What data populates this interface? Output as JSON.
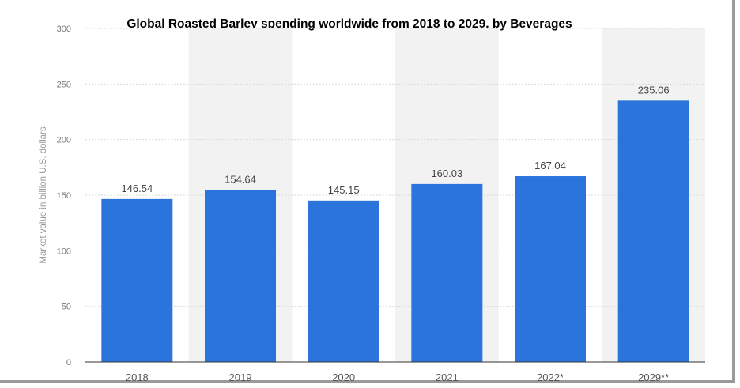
{
  "chart_data": {
    "type": "bar",
    "title": "Global Roasted Barley spending worldwide from 2018 to 2029, by Beverages",
    "xlabel": "",
    "ylabel": "Market value in billion U.S. dollars",
    "categories": [
      "2018",
      "2019",
      "2020",
      "2021",
      "2022*",
      "2029**"
    ],
    "values": [
      146.54,
      154.64,
      145.15,
      160.03,
      167.04,
      235.06
    ],
    "data_labels": [
      "146.54",
      "154.64",
      "145.15",
      "160.03",
      "167.04",
      "235.06"
    ],
    "ylim": [
      0,
      300
    ],
    "yticks": [
      0,
      50,
      100,
      150,
      200,
      250,
      300
    ],
    "grid": true,
    "legend": "none",
    "colors": {
      "bar": "#2a74dc",
      "band": "#f2f2f2",
      "grid": "#dadada",
      "axis": "#333333"
    }
  }
}
